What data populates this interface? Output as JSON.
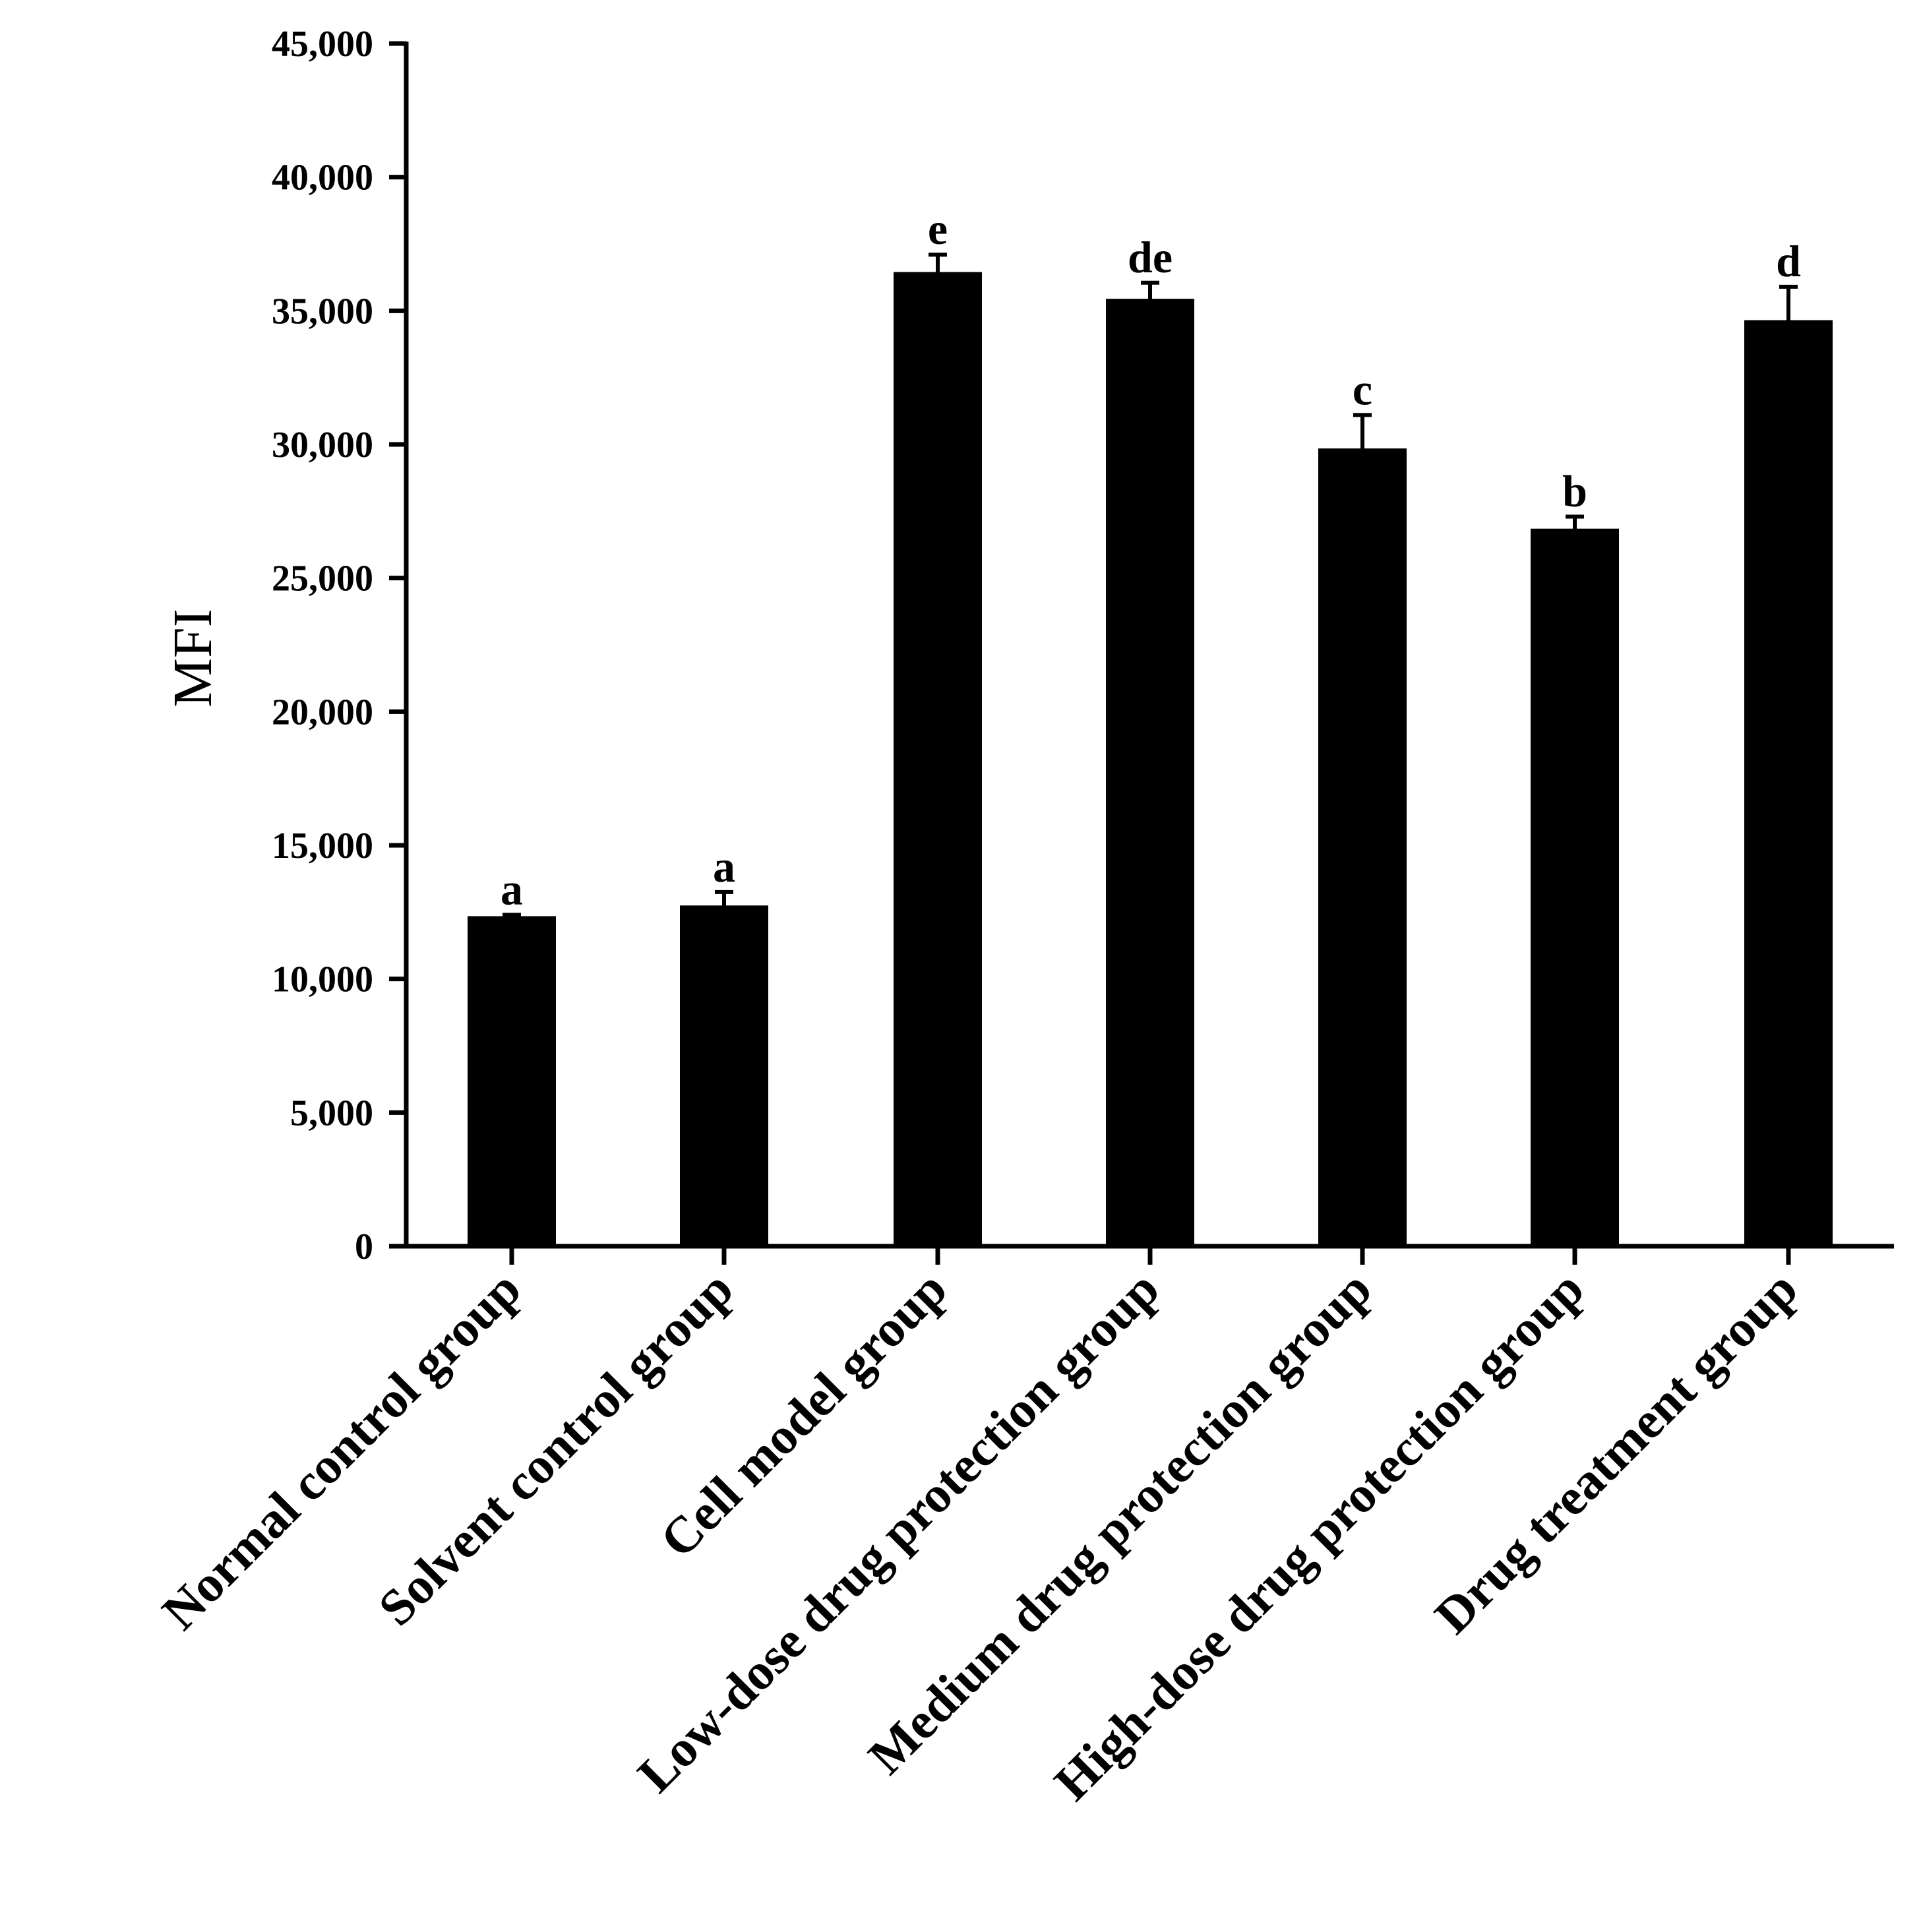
{
  "chart_data": {
    "type": "bar",
    "title": "",
    "xlabel": "",
    "ylabel": "MFI",
    "ylim": [
      0,
      45000
    ],
    "yticks": [
      0,
      5000,
      10000,
      15000,
      20000,
      25000,
      30000,
      35000,
      40000,
      45000
    ],
    "ytick_labels": [
      "0",
      "5,000",
      "10,000",
      "15,000",
      "20,000",
      "25,000",
      "30,000",
      "35,000",
      "40,000",
      "45,000"
    ],
    "categories": [
      "Normal control group",
      "Solvent control group",
      "Cell model group",
      "Low-dose drug protection group",
      "Medium drug protection group",
      "High-dose drug protection group",
      "Drug treatment group"
    ],
    "values": [
      12300,
      12700,
      36400,
      35400,
      29800,
      26800,
      34600
    ],
    "errors": [
      100,
      550,
      700,
      650,
      1300,
      500,
      1300
    ],
    "significance_letters": [
      "a",
      "a",
      "e",
      "de",
      "c",
      "b",
      "d"
    ],
    "bar_color": "#000000",
    "grid": false,
    "legend": "none"
  }
}
